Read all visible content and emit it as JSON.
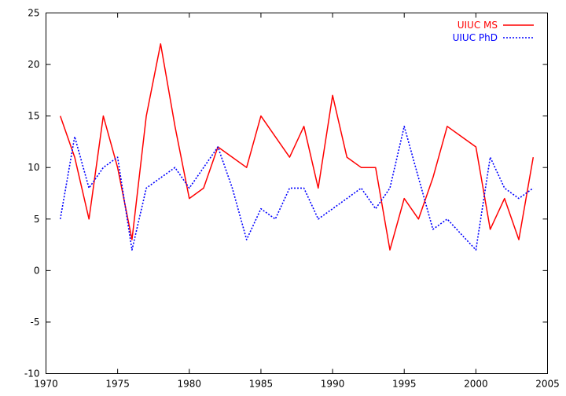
{
  "chart_data": {
    "type": "line",
    "title": "",
    "xlabel": "",
    "ylabel": "",
    "xlim": [
      1970,
      2005
    ],
    "ylim": [
      -10,
      25
    ],
    "xticks": [
      1970,
      1975,
      1980,
      1985,
      1990,
      1995,
      2000,
      2005
    ],
    "yticks": [
      -10,
      -5,
      0,
      5,
      10,
      15,
      20,
      25
    ],
    "grid": false,
    "legend_position": "top-right",
    "x": [
      1971,
      1972,
      1973,
      1974,
      1975,
      1976,
      1977,
      1978,
      1979,
      1980,
      1981,
      1982,
      1983,
      1984,
      1985,
      1986,
      1987,
      1988,
      1989,
      1990,
      1991,
      1992,
      1993,
      1994,
      1995,
      1996,
      1997,
      1998,
      1999,
      2000,
      2001,
      2002,
      2003,
      2004
    ],
    "series": [
      {
        "name": "UIUC MS",
        "color": "#ff0000",
        "style": "solid",
        "values": [
          15,
          11,
          5,
          15,
          10,
          3,
          15,
          22,
          14,
          7,
          8,
          12,
          11,
          10,
          15,
          13,
          11,
          14,
          8,
          17,
          11,
          10,
          10,
          2,
          7,
          5,
          9,
          14,
          13,
          12,
          4,
          7,
          3,
          11
        ]
      },
      {
        "name": "UIUC PhD",
        "color": "#0000ff",
        "style": "dotted",
        "values": [
          5,
          13,
          8,
          10,
          11,
          2,
          8,
          9,
          10,
          8,
          10,
          12,
          8,
          3,
          6,
          5,
          8,
          8,
          5,
          6,
          7,
          8,
          6,
          8,
          14,
          9,
          4,
          5,
          3.5,
          2,
          11,
          8,
          7,
          8
        ]
      }
    ]
  }
}
